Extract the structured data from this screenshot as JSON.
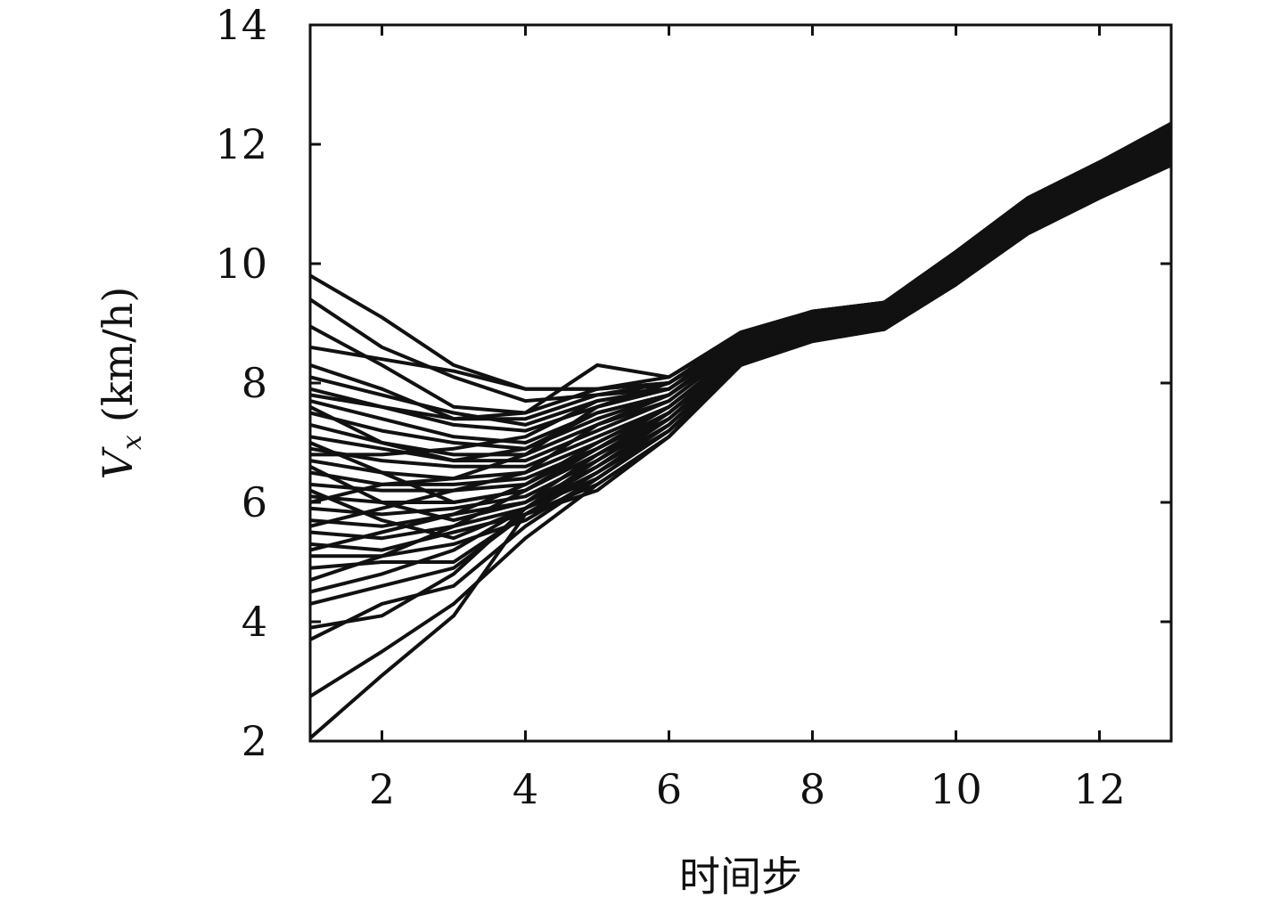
{
  "chart_data": {
    "type": "line",
    "title": "",
    "xlabel": "时间步",
    "ylabel": {
      "symbol": "V",
      "subscript": "x",
      "unit": "(km/h)"
    },
    "xlim": [
      1,
      13
    ],
    "ylim": [
      2,
      14
    ],
    "xticks": [
      2,
      4,
      6,
      8,
      10,
      12
    ],
    "yticks": [
      2,
      4,
      6,
      8,
      10,
      12,
      14
    ],
    "grid": false,
    "legend": "none",
    "line_color": "#111111",
    "x": [
      1,
      2,
      3,
      4,
      5,
      6,
      7,
      8,
      9,
      10,
      11,
      12,
      13
    ],
    "series": [
      {
        "values": [
          9.8,
          9.1,
          8.3,
          7.9,
          7.9,
          8.0,
          8.8,
          9.2,
          9.35,
          10.2,
          11.1,
          11.7,
          12.35
        ]
      },
      {
        "values": [
          9.4,
          8.6,
          8.1,
          7.7,
          7.8,
          7.9,
          8.7,
          9.1,
          9.3,
          10.1,
          11.0,
          11.65,
          12.3
        ]
      },
      {
        "values": [
          8.6,
          8.4,
          8.2,
          7.9,
          7.9,
          8.1,
          8.85,
          9.2,
          9.35,
          10.2,
          11.1,
          11.7,
          12.35
        ]
      },
      {
        "values": [
          8.95,
          8.3,
          7.6,
          7.5,
          7.9,
          8.0,
          8.8,
          9.15,
          9.3,
          10.1,
          11.0,
          11.6,
          12.25
        ]
      },
      {
        "values": [
          8.3,
          7.9,
          7.4,
          7.4,
          7.8,
          8.0,
          8.8,
          9.15,
          9.3,
          10.1,
          11.0,
          11.6,
          12.25
        ]
      },
      {
        "values": [
          8.1,
          7.8,
          7.5,
          7.3,
          7.7,
          7.9,
          8.75,
          9.1,
          9.3,
          10.05,
          10.95,
          11.55,
          12.2
        ]
      },
      {
        "values": [
          7.9,
          7.6,
          7.3,
          7.2,
          7.6,
          7.9,
          8.7,
          9.1,
          9.25,
          10.0,
          10.9,
          11.5,
          12.15
        ]
      },
      {
        "values": [
          7.7,
          7.4,
          7.1,
          7.0,
          7.5,
          7.8,
          8.7,
          9.05,
          9.25,
          10.0,
          10.9,
          11.5,
          12.1
        ]
      },
      {
        "values": [
          7.5,
          7.2,
          7.0,
          6.9,
          7.4,
          7.8,
          8.65,
          9.05,
          9.2,
          9.95,
          10.85,
          11.45,
          12.05
        ]
      },
      {
        "values": [
          7.3,
          7.0,
          6.8,
          6.8,
          7.3,
          7.7,
          8.6,
          9.0,
          9.2,
          9.95,
          10.85,
          11.45,
          12.05
        ]
      },
      {
        "values": [
          7.1,
          6.9,
          6.7,
          6.7,
          7.2,
          7.7,
          8.6,
          9.0,
          9.15,
          9.9,
          10.8,
          11.4,
          12.0
        ]
      },
      {
        "values": [
          6.9,
          6.7,
          6.6,
          6.6,
          7.1,
          7.6,
          8.55,
          8.95,
          9.15,
          9.9,
          10.8,
          11.4,
          12.0
        ]
      },
      {
        "values": [
          6.7,
          6.5,
          6.4,
          6.5,
          7.0,
          7.6,
          8.5,
          8.95,
          9.1,
          9.85,
          10.75,
          11.35,
          11.95
        ]
      },
      {
        "values": [
          6.5,
          6.3,
          6.3,
          6.4,
          6.9,
          7.5,
          8.5,
          8.9,
          9.1,
          9.85,
          10.75,
          11.35,
          11.9
        ]
      },
      {
        "values": [
          6.3,
          6.2,
          6.2,
          6.3,
          6.9,
          7.5,
          8.45,
          8.9,
          9.05,
          9.8,
          10.7,
          11.3,
          11.9
        ]
      },
      {
        "values": [
          6.1,
          6.0,
          6.0,
          6.2,
          6.8,
          7.4,
          8.45,
          8.85,
          9.05,
          9.8,
          10.7,
          11.3,
          11.85
        ]
      },
      {
        "values": [
          5.9,
          5.8,
          5.9,
          6.1,
          6.7,
          7.4,
          8.4,
          8.85,
          9.0,
          9.75,
          10.65,
          11.25,
          11.85
        ]
      },
      {
        "values": [
          5.7,
          5.6,
          5.8,
          6.0,
          6.6,
          7.3,
          8.4,
          8.8,
          9.0,
          9.75,
          10.65,
          11.25,
          11.8
        ]
      },
      {
        "values": [
          5.5,
          5.4,
          5.6,
          5.9,
          6.5,
          7.3,
          8.35,
          8.8,
          8.95,
          9.7,
          10.6,
          11.2,
          11.8
        ]
      },
      {
        "values": [
          5.3,
          5.2,
          5.5,
          5.8,
          6.5,
          7.2,
          8.35,
          8.75,
          8.95,
          9.7,
          10.6,
          11.2,
          11.75
        ]
      },
      {
        "values": [
          5.1,
          5.1,
          5.3,
          5.7,
          6.4,
          7.2,
          8.3,
          8.75,
          8.9,
          9.7,
          10.55,
          11.15,
          11.75
        ]
      },
      {
        "values": [
          4.9,
          5.0,
          5.0,
          5.8,
          6.3,
          7.1,
          8.3,
          8.7,
          8.9,
          9.65,
          10.55,
          11.15,
          11.7
        ]
      },
      {
        "values": [
          4.5,
          4.8,
          5.2,
          5.9,
          6.4,
          7.2,
          8.3,
          8.75,
          8.95,
          9.7,
          10.6,
          11.2,
          11.75
        ]
      },
      {
        "values": [
          4.3,
          4.6,
          4.9,
          5.8,
          6.5,
          7.3,
          8.35,
          8.75,
          8.95,
          9.7,
          10.6,
          11.2,
          11.8
        ]
      },
      {
        "values": [
          3.9,
          4.1,
          4.8,
          5.9,
          6.6,
          7.4,
          8.4,
          8.8,
          9.0,
          9.75,
          10.65,
          11.25,
          11.8
        ]
      },
      {
        "values": [
          3.7,
          4.3,
          4.6,
          5.6,
          6.4,
          7.2,
          8.35,
          8.8,
          8.95,
          9.7,
          10.6,
          11.2,
          11.75
        ]
      },
      {
        "values": [
          2.75,
          3.5,
          4.3,
          5.4,
          6.3,
          7.1,
          8.3,
          8.75,
          8.9,
          9.65,
          10.55,
          11.15,
          11.7
        ]
      },
      {
        "values": [
          2.05,
          3.1,
          4.1,
          5.8,
          6.2,
          7.1,
          8.3,
          8.7,
          8.9,
          9.65,
          10.5,
          11.1,
          11.65
        ]
      },
      {
        "values": [
          7.8,
          7.6,
          7.4,
          7.5,
          8.3,
          8.1,
          8.8,
          9.2,
          9.35,
          10.15,
          11.05,
          11.65,
          12.3
        ]
      },
      {
        "values": [
          6.0,
          6.3,
          6.4,
          6.8,
          7.6,
          8.0,
          8.7,
          9.1,
          9.25,
          10.0,
          10.9,
          11.5,
          12.1
        ]
      },
      {
        "values": [
          5.6,
          5.9,
          6.2,
          6.5,
          7.3,
          7.8,
          8.6,
          9.0,
          9.2,
          9.95,
          10.85,
          11.45,
          12.05
        ]
      },
      {
        "values": [
          7.0,
          6.5,
          6.0,
          6.2,
          6.9,
          7.6,
          8.55,
          8.95,
          9.15,
          9.9,
          10.8,
          11.4,
          12.0
        ]
      },
      {
        "values": [
          6.6,
          6.0,
          5.7,
          6.0,
          6.8,
          7.5,
          8.5,
          8.9,
          9.1,
          9.85,
          10.75,
          11.35,
          11.95
        ]
      },
      {
        "values": [
          6.2,
          5.7,
          5.4,
          5.9,
          6.7,
          7.5,
          8.45,
          8.9,
          9.05,
          9.8,
          10.7,
          11.3,
          11.9
        ]
      },
      {
        "values": [
          5.2,
          5.5,
          5.8,
          6.3,
          7.0,
          7.6,
          8.5,
          8.9,
          9.1,
          9.85,
          10.75,
          11.35,
          11.95
        ]
      },
      {
        "values": [
          4.7,
          5.1,
          5.6,
          6.2,
          6.9,
          7.5,
          8.45,
          8.85,
          9.05,
          9.8,
          10.7,
          11.3,
          11.9
        ]
      },
      {
        "values": [
          7.6,
          7.0,
          6.7,
          6.9,
          7.5,
          7.8,
          8.65,
          9.05,
          9.2,
          9.95,
          10.85,
          11.45,
          12.05
        ]
      },
      {
        "values": [
          6.8,
          6.8,
          6.9,
          7.1,
          7.7,
          7.9,
          8.7,
          9.1,
          9.25,
          10.0,
          10.9,
          11.5,
          12.1
        ]
      }
    ]
  }
}
